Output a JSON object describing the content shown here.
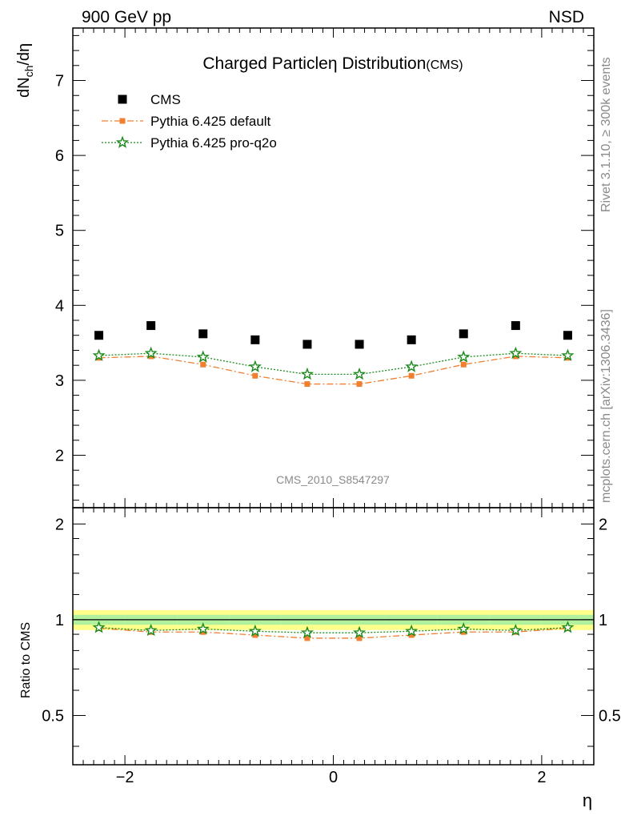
{
  "header": {
    "left_label": "900 GeV pp",
    "right_label": "NSD"
  },
  "side_labels": {
    "rivet": "Rivet 3.1.10, ≥ 300k events",
    "mcplots": "mcplots.cern.ch [arXiv:1306.3436]"
  },
  "chart_data": {
    "type": "scatter",
    "title_main": "Charged Particle",
    "title_symbol": "η",
    "title_rest": " Distribution",
    "title_sub": "(CMS)",
    "analysis_id": "CMS_2010_S8547297",
    "xlabel": "η",
    "ylabel_main": "dN",
    "ylabel_sub": "ch",
    "ylabel_rest": "/dη",
    "ratio_ylabel": "Ratio to CMS",
    "xlim": [
      -2.5,
      2.5
    ],
    "ylim": [
      1.3,
      7.7
    ],
    "ratio_ylim": [
      0.35,
      2.25
    ],
    "main_y_ticks": [
      "2",
      "3",
      "4",
      "5",
      "6",
      "7"
    ],
    "ratio_y_ticks": [
      "0.5",
      "1",
      "2"
    ],
    "x_ticks": [
      "−2",
      "0",
      "2"
    ],
    "x": [
      -2.25,
      -1.75,
      -1.25,
      -0.75,
      -0.25,
      0.25,
      0.75,
      1.25,
      1.75,
      2.25
    ],
    "series": [
      {
        "name": "CMS",
        "color": "#000000",
        "marker": "square",
        "values": [
          3.6,
          3.73,
          3.62,
          3.54,
          3.48,
          3.48,
          3.54,
          3.62,
          3.73,
          3.6
        ],
        "band_inner": 0.036,
        "band_outer": 0.072
      },
      {
        "name": "Pythia 6.425 default",
        "color": "#f07f2f",
        "marker": "filled-square",
        "line": "dashdot",
        "values": [
          3.3,
          3.32,
          3.21,
          3.06,
          2.95,
          2.95,
          3.06,
          3.21,
          3.32,
          3.3
        ],
        "ratio": [
          0.94,
          0.915,
          0.915,
          0.895,
          0.875,
          0.875,
          0.895,
          0.915,
          0.915,
          0.94
        ]
      },
      {
        "name": "Pythia 6.425 pro-q2o",
        "color": "#1a8a1a",
        "marker": "star",
        "line": "dotted",
        "values": [
          3.33,
          3.36,
          3.31,
          3.18,
          3.08,
          3.08,
          3.18,
          3.31,
          3.36,
          3.33
        ],
        "ratio": [
          0.945,
          0.925,
          0.935,
          0.92,
          0.91,
          0.91,
          0.92,
          0.935,
          0.925,
          0.945
        ]
      }
    ],
    "legend_position": "top-left"
  }
}
